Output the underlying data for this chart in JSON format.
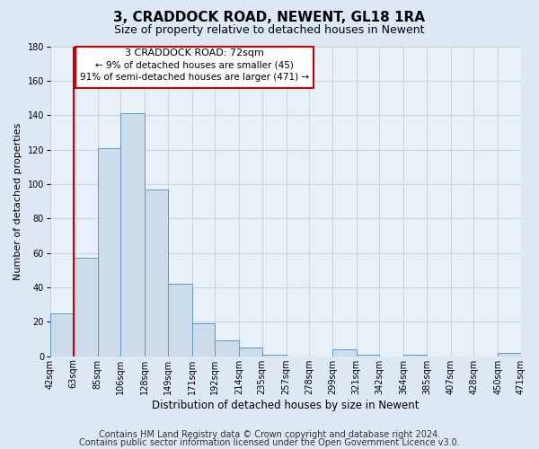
{
  "title": "3, CRADDOCK ROAD, NEWENT, GL18 1RA",
  "subtitle": "Size of property relative to detached houses in Newent",
  "xlabel": "Distribution of detached houses by size in Newent",
  "ylabel": "Number of detached properties",
  "bin_labels": [
    "42sqm",
    "63sqm",
    "85sqm",
    "106sqm",
    "128sqm",
    "149sqm",
    "171sqm",
    "192sqm",
    "214sqm",
    "235sqm",
    "257sqm",
    "278sqm",
    "299sqm",
    "321sqm",
    "342sqm",
    "364sqm",
    "385sqm",
    "407sqm",
    "428sqm",
    "450sqm",
    "471sqm"
  ],
  "bar_values": [
    25,
    57,
    121,
    141,
    97,
    42,
    19,
    9,
    5,
    1,
    0,
    0,
    4,
    1,
    0,
    1,
    0,
    0,
    0,
    2
  ],
  "bar_color": "#ccdcec",
  "bar_edge_color": "#6699bb",
  "vline_color": "#cc0000",
  "vline_x_index": 1,
  "ylim": [
    0,
    180
  ],
  "yticks": [
    0,
    20,
    40,
    60,
    80,
    100,
    120,
    140,
    160,
    180
  ],
  "annotation_title": "3 CRADDOCK ROAD: 72sqm",
  "annotation_line1": "← 9% of detached houses are smaller (45)",
  "annotation_line2": "91% of semi-detached houses are larger (471) →",
  "annotation_box_color": "#ffffff",
  "annotation_box_edge": "#cc0000",
  "footer1": "Contains HM Land Registry data © Crown copyright and database right 2024.",
  "footer2": "Contains public sector information licensed under the Open Government Licence v3.0.",
  "fig_background_color": "#dce8f4",
  "plot_background_color": "#e8f0f8",
  "grid_color": "#c8d4e0",
  "title_fontsize": 11,
  "subtitle_fontsize": 9,
  "footer_fontsize": 7,
  "ylabel_fontsize": 8,
  "xlabel_fontsize": 8.5,
  "tick_fontsize": 7,
  "ann_title_fontsize": 8,
  "ann_text_fontsize": 7.5
}
